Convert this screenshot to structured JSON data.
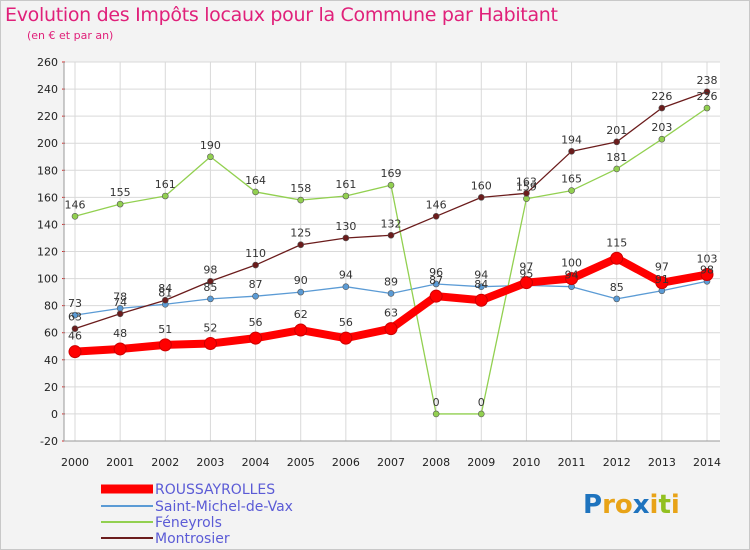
{
  "chart_data": {
    "type": "line",
    "title": "Evolution des Impôts locaux pour la Commune par Habitant",
    "subtitle": "(en € et par an)",
    "xlabel": "",
    "ylabel": "",
    "x": [
      "2000",
      "2001",
      "2002",
      "2003",
      "2004",
      "2005",
      "2006",
      "2007",
      "2008",
      "2009",
      "2010",
      "2011",
      "2012",
      "2013",
      "2014"
    ],
    "ylim": [
      -20,
      260
    ],
    "yticks": [
      -20,
      0,
      20,
      40,
      60,
      80,
      100,
      120,
      140,
      160,
      180,
      200,
      220,
      240,
      260
    ],
    "grid": true,
    "legend_position": "bottom-left",
    "series": [
      {
        "name": "ROUSSAYROLLES",
        "color": "#ff0000",
        "values": [
          46,
          48,
          51,
          52,
          56,
          62,
          56,
          63,
          87,
          84,
          97,
          100,
          115,
          97,
          103
        ]
      },
      {
        "name": "Saint-Michel-de-Vax",
        "color": "#5b9bd5",
        "values": [
          73,
          78,
          81,
          85,
          87,
          90,
          94,
          89,
          96,
          94,
          95,
          94,
          85,
          91,
          98
        ]
      },
      {
        "name": "Féneyrols",
        "color": "#92d050",
        "values": [
          146,
          155,
          161,
          190,
          164,
          158,
          161,
          169,
          0,
          0,
          159,
          165,
          181,
          203,
          226
        ]
      },
      {
        "name": "Montrosier",
        "color": "#6b1c1c",
        "values": [
          63,
          74,
          84,
          98,
          110,
          125,
          130,
          132,
          146,
          160,
          163,
          194,
          201,
          226,
          238
        ]
      }
    ]
  },
  "logo": {
    "text": "Proxiti"
  },
  "colors": {
    "title": "#e0207a",
    "background": "#f3f3f3",
    "grid": "#d9d9d9"
  }
}
